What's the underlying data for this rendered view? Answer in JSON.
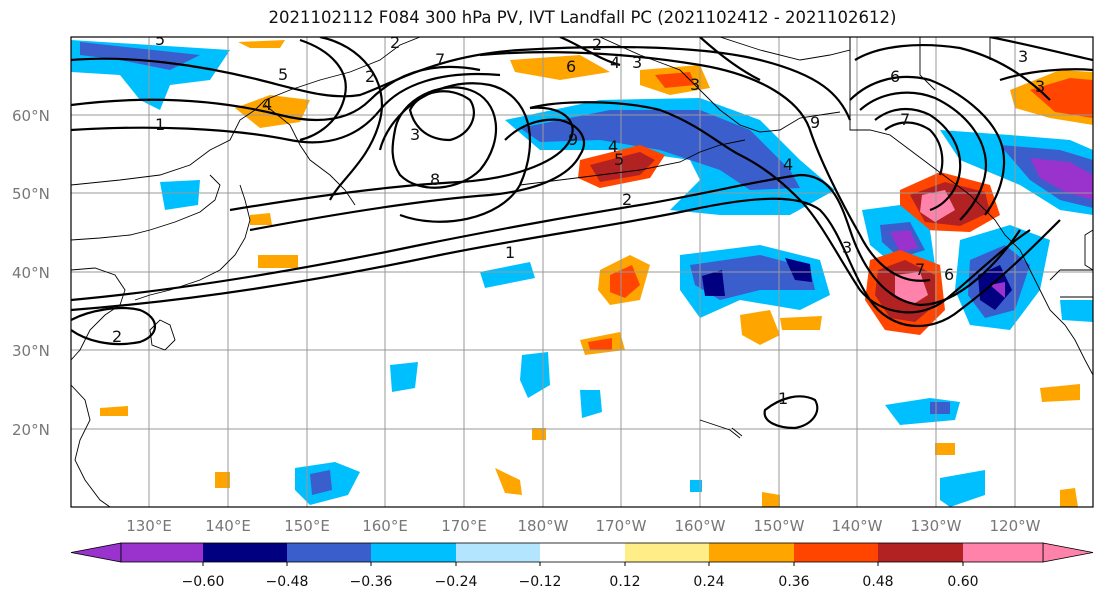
{
  "title": "2021102112 F084 300 hPa PV, IVT Landfall PC (2021102412 - 2021102612)",
  "lat_labels": [
    "60°N",
    "50°N",
    "40°N",
    "30°N",
    "20°N"
  ],
  "lon_labels": [
    "130°E",
    "140°E",
    "150°E",
    "160°E",
    "170°E",
    "180°W",
    "170°W",
    "160°W",
    "150°W",
    "140°W",
    "130°W",
    "120°W"
  ],
  "colorbar": {
    "colors": [
      "#9a32cd",
      "#000080",
      "#3a5fcd",
      "#00bfff",
      "#b3e5ff",
      "#ffffff",
      "#ffee88",
      "#ffa500",
      "#ff4500",
      "#b22222",
      "#ff82ab"
    ],
    "tick_labels": [
      "−0.60",
      "−0.48",
      "−0.36",
      "−0.24",
      "−0.12",
      "0.12",
      "0.24",
      "0.36",
      "0.48",
      "0.60"
    ]
  },
  "contour_labels": [
    "5",
    "1",
    "4",
    "2",
    "1",
    "7",
    "2",
    "2",
    "2",
    "6",
    "4",
    "3",
    "3",
    "8",
    "4",
    "5",
    "4",
    "2",
    "1",
    "7",
    "9",
    "6",
    "9",
    "6",
    "7",
    "7",
    "3",
    "3",
    "1",
    "2",
    "1"
  ]
}
